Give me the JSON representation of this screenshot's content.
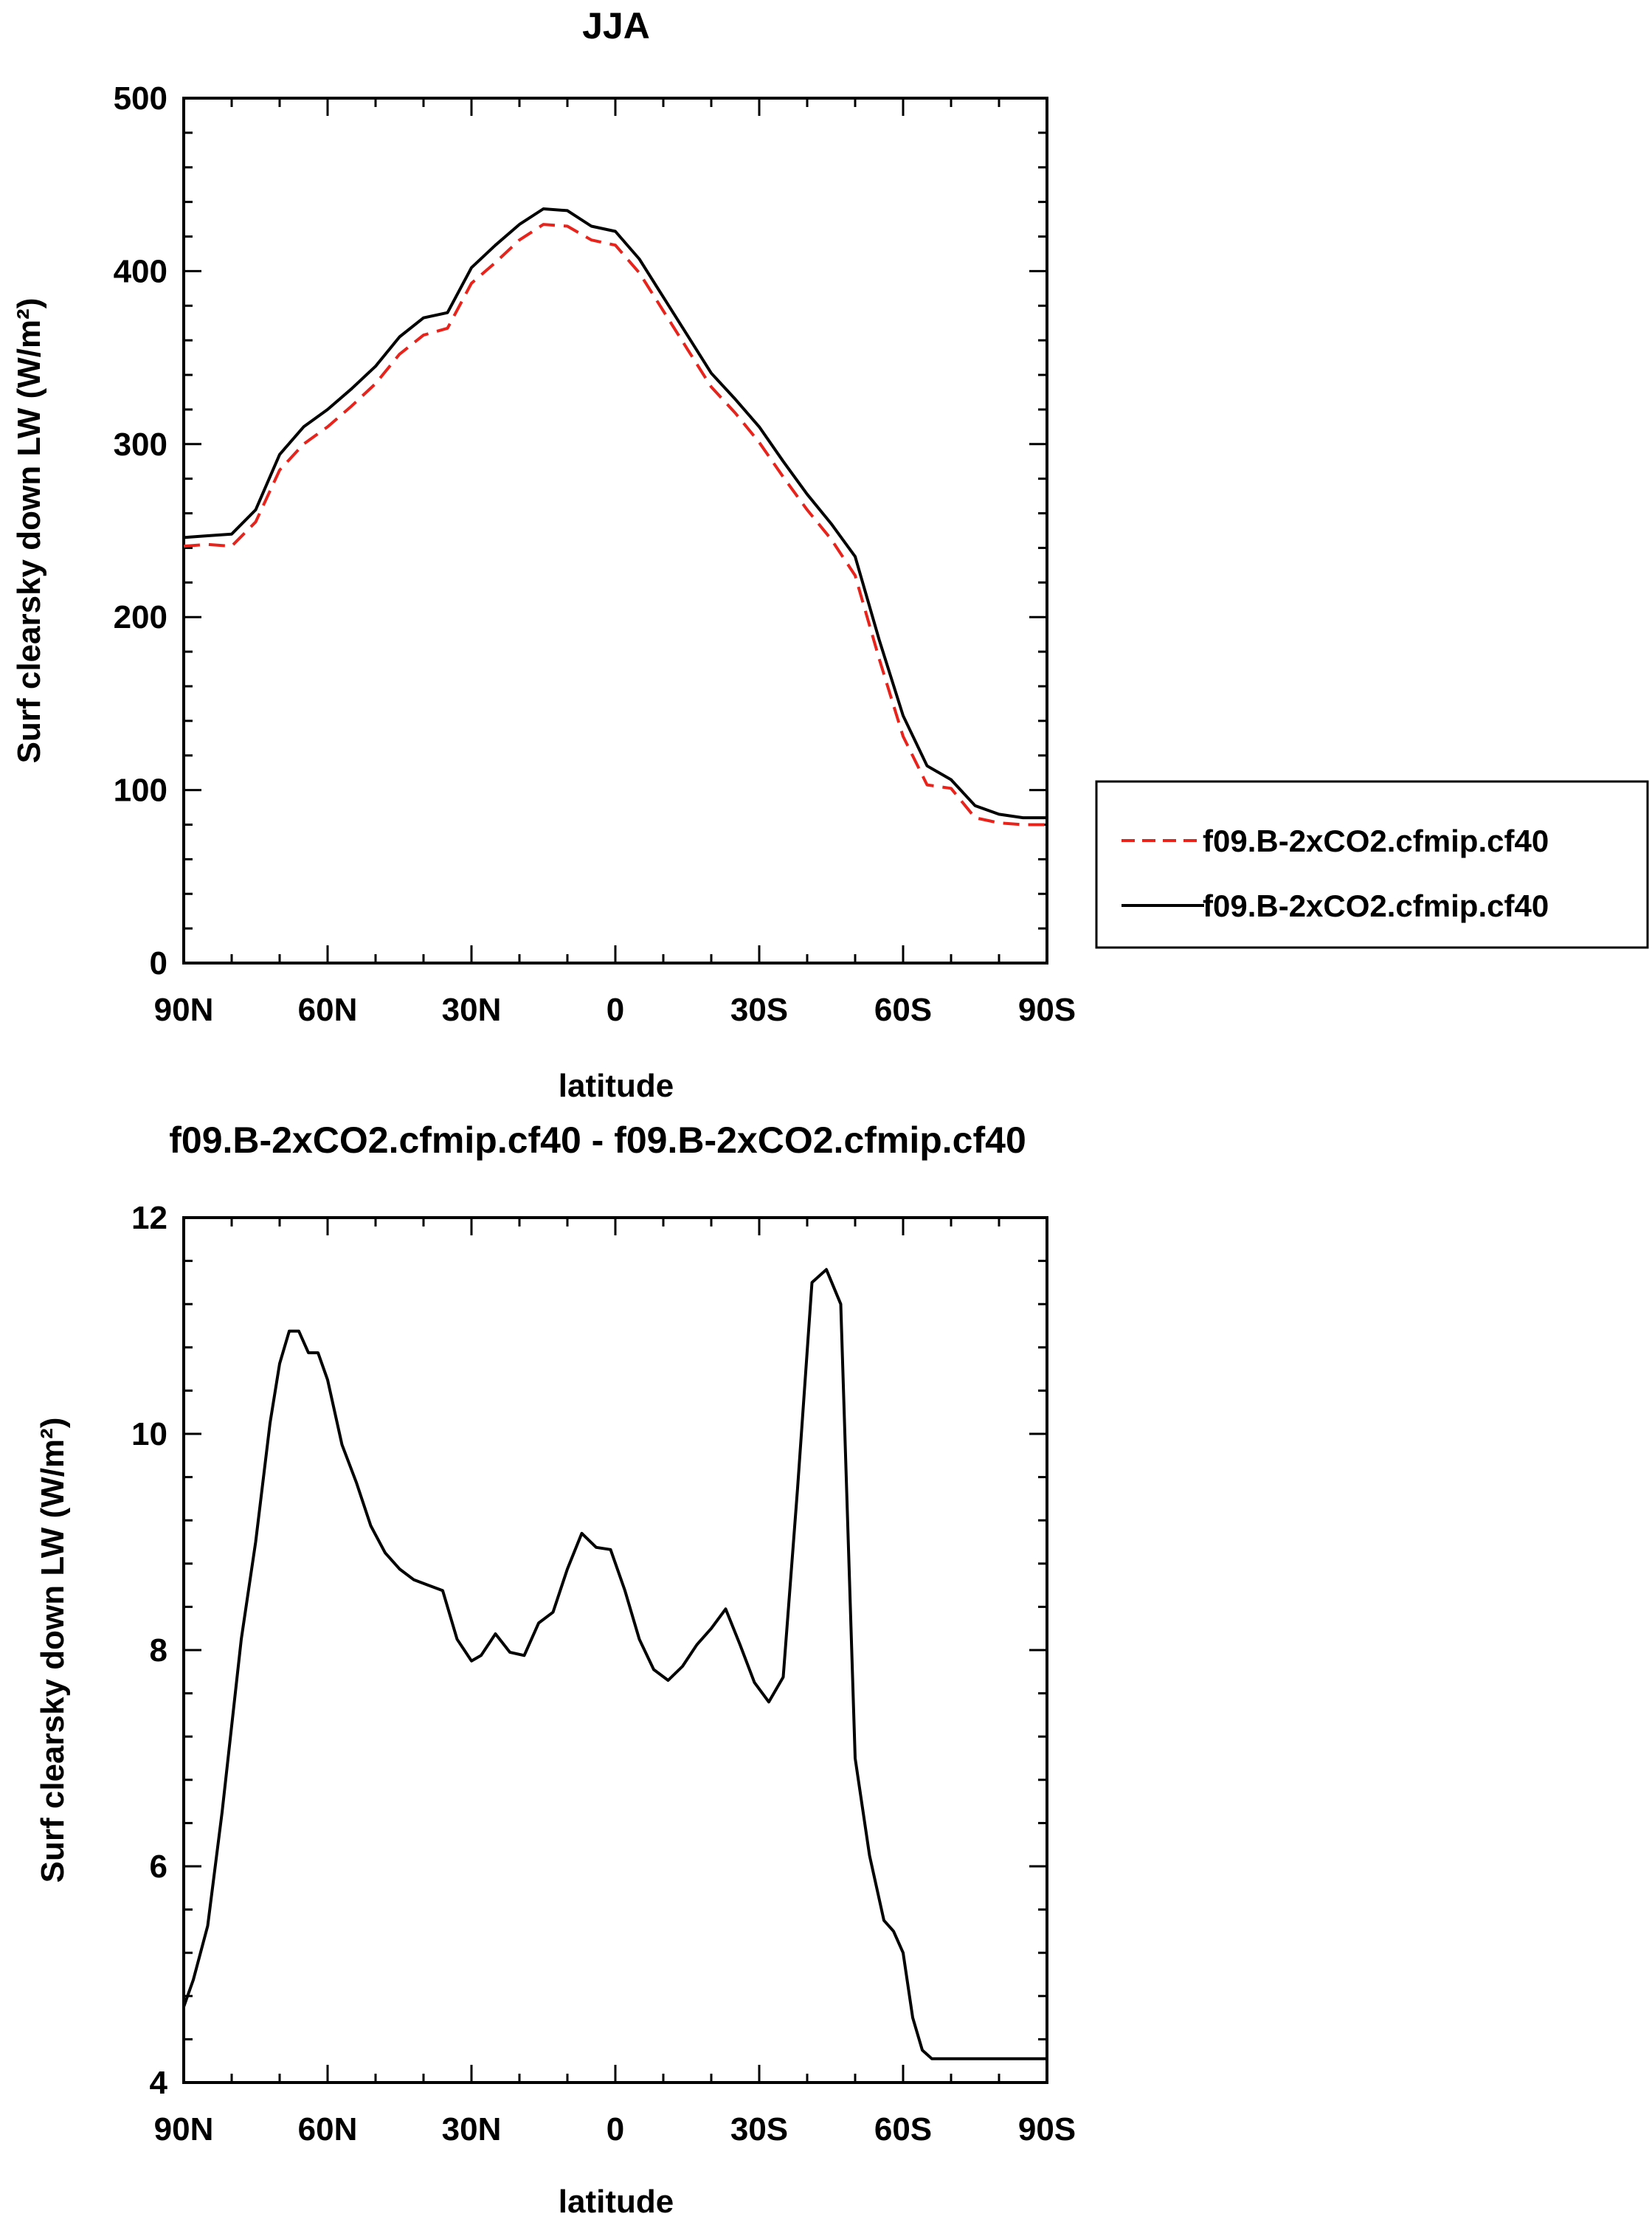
{
  "chart_data": [
    {
      "type": "line",
      "title": "JJA",
      "xlabel": "latitude",
      "ylabel": "Surf clearsky down LW (W/m²)",
      "xlim": [
        90,
        -90
      ],
      "ylim": [
        0,
        500
      ],
      "xticks": [
        90,
        60,
        30,
        0,
        -30,
        -60,
        -90
      ],
      "xtick_labels": [
        "90N",
        "60N",
        "30N",
        "0",
        "30S",
        "60S",
        "90S"
      ],
      "yticks": [
        0,
        100,
        200,
        300,
        400,
        500
      ],
      "ytick_labels": [
        "0",
        "100",
        "200",
        "300",
        "400",
        "500"
      ],
      "grid": false,
      "legend_position": "outside-right",
      "series": [
        {
          "name": "f09.B-2xCO2.cfmip.cf40",
          "color": "#e8231c",
          "dash": "dashed",
          "x": [
            90,
            85,
            80,
            75,
            70,
            65,
            60,
            55,
            50,
            45,
            40,
            35,
            30,
            25,
            20,
            15,
            10,
            5,
            0,
            -5,
            -10,
            -15,
            -20,
            -25,
            -30,
            -35,
            -40,
            -45,
            -50,
            -55,
            -60,
            -65,
            -70,
            -75,
            -80,
            -85,
            -90
          ],
          "y": [
            241,
            242,
            241,
            255,
            285,
            300,
            310,
            322,
            335,
            352,
            363,
            367,
            393,
            405,
            418,
            427,
            426,
            418,
            415,
            399,
            377,
            355,
            333,
            318,
            301,
            281,
            262,
            245,
            224,
            176,
            131,
            103,
            101,
            84,
            81,
            80,
            80
          ]
        },
        {
          "name": "f09.B-2xCO2.cfmip.cf40",
          "color": "#000000",
          "dash": "solid",
          "x": [
            90,
            85,
            80,
            75,
            70,
            65,
            60,
            55,
            50,
            45,
            40,
            35,
            30,
            25,
            20,
            15,
            10,
            5,
            0,
            -5,
            -10,
            -15,
            -20,
            -25,
            -30,
            -35,
            -40,
            -45,
            -50,
            -55,
            -60,
            -65,
            -70,
            -75,
            -80,
            -85,
            -90
          ],
          "y": [
            246,
            247,
            248,
            262,
            294,
            310,
            320,
            332,
            345,
            362,
            373,
            376,
            402,
            415,
            427,
            436,
            435,
            426,
            423,
            407,
            385,
            363,
            341,
            326,
            310,
            290,
            271,
            254,
            235,
            187,
            143,
            114,
            106,
            91,
            86,
            84,
            84
          ]
        }
      ]
    },
    {
      "type": "line",
      "title": "f09.B-2xCO2.cfmip.cf40 - f09.B-2xCO2.cfmip.cf40",
      "xlabel": "latitude",
      "ylabel": "Surf clearsky down LW (W/m²)",
      "xlim": [
        90,
        -90
      ],
      "ylim": [
        4,
        12
      ],
      "xticks": [
        90,
        60,
        30,
        0,
        -30,
        -60,
        -90
      ],
      "xtick_labels": [
        "90N",
        "60N",
        "30N",
        "0",
        "30S",
        "60S",
        "90S"
      ],
      "yticks": [
        4,
        6,
        8,
        10,
        12
      ],
      "ytick_labels": [
        "4",
        "6",
        "8",
        "10",
        "12"
      ],
      "grid": false,
      "series": [
        {
          "color": "#000000",
          "dash": "solid",
          "x": [
            90,
            88,
            85,
            82,
            80,
            78,
            75,
            72,
            70,
            68,
            66,
            64,
            62,
            60,
            57,
            54,
            51,
            48,
            45,
            42,
            39,
            36,
            33,
            30,
            28,
            25,
            22,
            19,
            16,
            13,
            10,
            7,
            4,
            1,
            -2,
            -5,
            -8,
            -11,
            -14,
            -17,
            -20,
            -23,
            -26,
            -29,
            -32,
            -35,
            -38,
            -41,
            -44,
            -47,
            -50,
            -53,
            -56,
            -58,
            -60,
            -62,
            -64,
            -66,
            -68,
            -70,
            -72,
            -74,
            -76,
            -78,
            -80,
            -82,
            -84,
            -86,
            -88,
            -90
          ],
          "y": [
            4.7,
            4.95,
            5.45,
            6.5,
            7.3,
            8.1,
            9.0,
            10.1,
            10.65,
            10.95,
            10.95,
            10.75,
            10.75,
            10.5,
            9.9,
            9.55,
            9.15,
            8.9,
            8.75,
            8.65,
            8.6,
            8.55,
            8.1,
            7.9,
            7.95,
            8.15,
            7.98,
            7.95,
            8.25,
            8.35,
            8.75,
            9.08,
            8.95,
            8.93,
            8.55,
            8.1,
            7.82,
            7.72,
            7.85,
            8.05,
            8.2,
            8.38,
            8.05,
            7.7,
            7.52,
            7.75,
            9.5,
            11.4,
            11.52,
            11.2,
            7.0,
            6.1,
            5.5,
            5.4,
            5.2,
            4.6,
            4.3,
            4.22,
            4.22,
            4.22,
            4.22,
            4.22,
            4.22,
            4.22,
            4.22,
            4.22,
            4.22,
            4.22,
            4.22,
            4.22
          ]
        }
      ]
    }
  ]
}
